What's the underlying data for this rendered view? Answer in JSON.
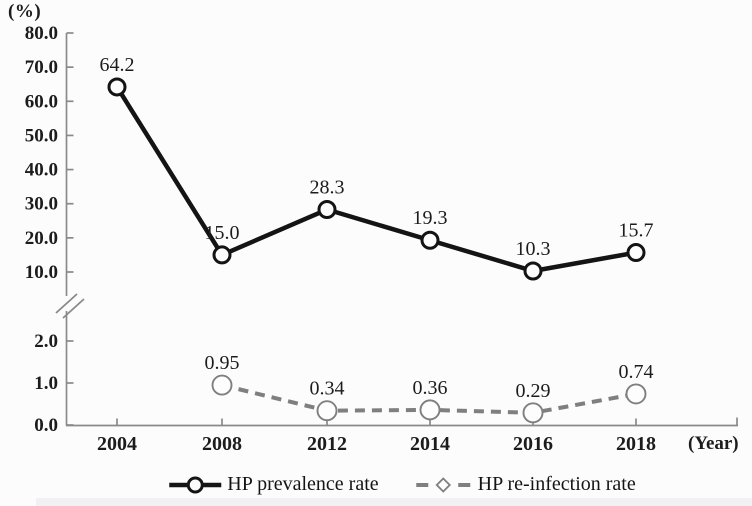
{
  "chart_data": {
    "type": "line",
    "title": "",
    "unit_label": "(%)",
    "x_axis_label": "(Year)",
    "categories": [
      "2004",
      "2008",
      "2012",
      "2014",
      "2016",
      "2018"
    ],
    "series": [
      {
        "name": "HP prevalence rate",
        "marker": "circle",
        "line_style": "solid",
        "color": "#141414",
        "values": [
          64.2,
          15.0,
          28.3,
          19.3,
          10.3,
          15.7
        ],
        "labels": [
          "64.2",
          "15.0",
          "28.3",
          "19.3",
          "10.3",
          "15.7"
        ]
      },
      {
        "name": "HP re-infection rate",
        "marker": "diamond",
        "line_style": "dashed",
        "color": "#7f7f7f",
        "values": [
          null,
          0.95,
          0.34,
          0.36,
          0.29,
          0.74
        ],
        "labels": [
          "",
          "0.95",
          "0.34",
          "0.36",
          "0.29",
          "0.74"
        ]
      }
    ],
    "y_axis": {
      "broken": true,
      "upper_section": {
        "range": [
          10,
          80
        ],
        "ticks": [
          80,
          70,
          60,
          50,
          40,
          30,
          20,
          10
        ],
        "tick_labels": [
          "80.0",
          "70.0",
          "60.0",
          "50.0",
          "40.0",
          "30.0",
          "20.0",
          "10.0"
        ]
      },
      "lower_section": {
        "range": [
          0,
          2
        ],
        "ticks": [
          2,
          1,
          0
        ],
        "tick_labels": [
          "2.0",
          "1.0",
          "0.0"
        ]
      }
    },
    "legend": {
      "position": "bottom",
      "items": [
        "HP prevalence rate",
        "HP re-infection rate"
      ]
    },
    "grid": false
  },
  "colors": {
    "background": "#fcfcfd",
    "axis": "#8a8a8a",
    "text": "#1c1c1c",
    "prevalence": "#141414",
    "reinfection": "#7f7f7f",
    "marker_fill": "#fdfdfe"
  }
}
